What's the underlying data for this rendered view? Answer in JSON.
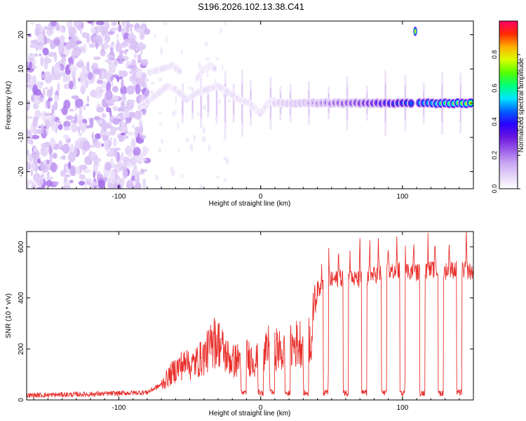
{
  "title": "S196.2026.102.13.38.C41",
  "colors": {
    "snr_line": "#e8302c",
    "axis": "#000000",
    "colormap": [
      "#ffffff",
      "#e4d4f8",
      "#c9a6f2",
      "#9a5ce8",
      "#6a16e0",
      "#2a00ff",
      "#0060ff",
      "#00e5ff",
      "#00ff7a",
      "#55ff00",
      "#d8ff00",
      "#ffb000",
      "#ff2a00",
      "#ff0066"
    ]
  },
  "chart_data": [
    {
      "id": "spectrogram",
      "type": "heatmap",
      "title": "S196.2026.102.13.38.C41",
      "xlabel": "Height of straight line (km)",
      "ylabel": "Frequency (Hz)",
      "xlim": [
        -165,
        150
      ],
      "ylim": [
        -25,
        24
      ],
      "xticks": [
        -100,
        0,
        100
      ],
      "yticks": [
        -20,
        -10,
        0,
        10,
        20
      ],
      "xtick_labels": [
        "-100",
        "0",
        "100"
      ],
      "ytick_labels": [
        "-20",
        "-10",
        "0",
        "10",
        "20"
      ],
      "colorbar": {
        "label": "Normalized spectral amplitude",
        "range": [
          0,
          1
        ],
        "ticks": [
          0.0,
          0.2,
          0.4,
          0.6,
          0.8
        ],
        "tick_labels": [
          "0.0",
          "0.2",
          "0.4",
          "0.6",
          "0.8"
        ]
      },
      "features": {
        "noise_region_x": [
          -165,
          -80
        ],
        "upper_branch": {
          "x": [
            -78,
            -70,
            -62,
            -56
          ],
          "y": [
            9,
            10,
            11,
            9
          ]
        },
        "upper_branch_2": {
          "x": [
            -45,
            -40,
            -35,
            -32
          ],
          "y": [
            7,
            10,
            11,
            10
          ]
        },
        "lower_branch": {
          "x": [
            -85,
            -78,
            -72,
            -66,
            -60,
            -52,
            -45,
            -38,
            -30,
            -22,
            -15,
            -8,
            -3,
            0,
            5,
            10
          ],
          "y": [
            -1,
            1,
            3,
            5,
            4,
            1,
            3,
            4,
            5,
            3,
            1,
            0,
            -2,
            -3,
            0,
            1
          ]
        },
        "carrier": {
          "x_start": 10,
          "x_end": 150,
          "y": 0,
          "amplitude_start": 0.3,
          "amplitude_end": 0.9
        },
        "carrier_gap_x": [
          107,
          111
        ],
        "burst": {
          "x": 109,
          "y": 21,
          "amplitude": 0.9
        },
        "spikes_x": [
          -55,
          -48,
          -42,
          -37,
          -31,
          -25,
          -19,
          -13,
          -7,
          7,
          14,
          21,
          34,
          48,
          61,
          75,
          88,
          102,
          115,
          128,
          141
        ]
      }
    },
    {
      "id": "snr",
      "type": "line",
      "xlabel": "Height of straight line (km)",
      "ylabel": "SNR (10 * v/v)",
      "xlim": [
        -165,
        150
      ],
      "ylim": [
        0,
        660
      ],
      "xticks": [
        -100,
        0,
        100
      ],
      "yticks": [
        0,
        200,
        400,
        600
      ],
      "xtick_labels": [
        "-100",
        "0",
        "100"
      ],
      "ytick_labels": [
        "0",
        "200",
        "400",
        "600"
      ],
      "series": [
        {
          "name": "SNR",
          "x": [
            -165,
            -145,
            -125,
            -105,
            -90,
            -80,
            -75,
            -70,
            -65,
            -60,
            -55,
            -50,
            -45,
            -40,
            -35,
            -30,
            -25,
            -20,
            -15,
            -10,
            -5,
            0,
            5,
            10,
            15,
            20,
            25,
            30,
            33,
            36,
            40,
            50,
            60,
            70,
            80,
            90,
            100,
            110,
            120,
            130,
            140,
            150
          ],
          "values": [
            18,
            20,
            22,
            25,
            28,
            30,
            45,
            60,
            90,
            120,
            140,
            130,
            150,
            170,
            210,
            230,
            180,
            150,
            160,
            170,
            160,
            150,
            190,
            210,
            180,
            200,
            220,
            230,
            240,
            250,
            430,
            470,
            480,
            470,
            490,
            500,
            510,
            500,
            510,
            505,
            515,
            500
          ]
        }
      ],
      "dropouts_x": [
        -12,
        0,
        8,
        19,
        32,
        46,
        60,
        73,
        87,
        100,
        114,
        127,
        140
      ],
      "peaks_x": [
        -52,
        -33,
        6,
        38,
        43,
        48,
        55,
        63,
        70,
        77,
        83,
        90,
        96,
        102,
        108,
        118,
        123,
        133,
        145
      ]
    }
  ]
}
